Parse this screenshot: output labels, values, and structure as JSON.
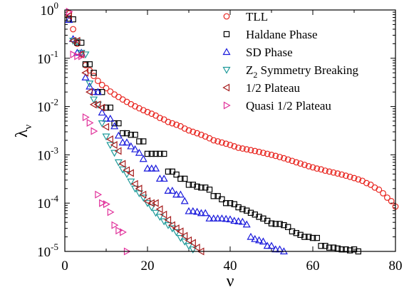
{
  "chart_data": {
    "type": "scatter",
    "xlabel": "ν",
    "ylabel": "λ",
    "ylabel_sub": "ν",
    "xlim": [
      0,
      80
    ],
    "ylim": [
      1e-05,
      1
    ],
    "yscale": "log",
    "x_ticks": [
      0,
      20,
      40,
      60,
      80
    ],
    "x_tick_labels": [
      "0",
      "20",
      "40",
      "60",
      "80"
    ],
    "y_ticks": [
      1,
      0.1,
      0.01,
      0.001,
      0.0001,
      1e-05
    ],
    "y_tick_labels": [
      {
        "base": "10",
        "exp": "0"
      },
      {
        "base": "10",
        "exp": "-1"
      },
      {
        "base": "10",
        "exp": "-2"
      },
      {
        "base": "10",
        "exp": "-3"
      },
      {
        "base": "10",
        "exp": "-4"
      },
      {
        "base": "10",
        "exp": "-5"
      }
    ],
    "legend_position": "top-right",
    "grid": false,
    "series": [
      {
        "name": "TLL",
        "marker": "circle",
        "color": "#e8251f",
        "x": [
          1,
          2,
          3,
          4,
          5,
          6,
          7,
          8,
          9,
          10,
          11,
          12,
          13,
          14,
          15,
          16,
          17,
          18,
          19,
          20,
          21,
          22,
          23,
          24,
          25,
          26,
          27,
          28,
          29,
          30,
          31,
          32,
          33,
          34,
          35,
          36,
          37,
          38,
          39,
          40,
          41,
          42,
          43,
          44,
          45,
          46,
          47,
          48,
          49,
          50,
          51,
          52,
          53,
          54,
          55,
          56,
          57,
          58,
          59,
          60,
          61,
          62,
          63,
          64,
          65,
          66,
          67,
          68,
          69,
          70,
          71,
          72,
          73,
          74,
          75,
          76,
          77,
          78,
          79,
          80
        ],
        "y": [
          0.85,
          0.4,
          0.2,
          0.12,
          0.072,
          0.056,
          0.043,
          0.034,
          0.028,
          0.024,
          0.0205,
          0.0178,
          0.0158,
          0.014,
          0.0125,
          0.0112,
          0.0101,
          0.0092,
          0.0084,
          0.0077,
          0.0071,
          0.0065,
          0.0058,
          0.0054,
          0.0048,
          0.0045,
          0.0042,
          0.0039,
          0.0035,
          0.0032,
          0.003,
          0.0028,
          0.0026,
          0.0024,
          0.0022,
          0.002,
          0.0019,
          0.0018,
          0.0017,
          0.0016,
          0.0015,
          0.0014,
          0.00135,
          0.0013,
          0.00125,
          0.0012,
          0.00115,
          0.0011,
          0.00105,
          0.001,
          0.00095,
          0.0009,
          0.00085,
          0.0008,
          0.00075,
          0.0007,
          0.00066,
          0.00062,
          0.00058,
          0.00055,
          0.00052,
          0.0005,
          0.00047,
          0.00045,
          0.00043,
          0.00041,
          0.00039,
          0.00037,
          0.00035,
          0.00033,
          0.00031,
          0.00029,
          0.00026,
          0.00024,
          0.00021,
          0.00019,
          0.00016,
          0.00013,
          0.00011,
          8.5e-05
        ]
      },
      {
        "name": "Haldane Phase",
        "marker": "square",
        "color": "#000000",
        "x": [
          1,
          2,
          3,
          4,
          5,
          6,
          7,
          8,
          9,
          10,
          11,
          12,
          13,
          14,
          15,
          16,
          17,
          18,
          19,
          20,
          21,
          22,
          23,
          24,
          25,
          26,
          27,
          28,
          29,
          30,
          31,
          32,
          33,
          34,
          35,
          36,
          37,
          38,
          39,
          40,
          41,
          42,
          43,
          44,
          45,
          46,
          47,
          48,
          49,
          50,
          51,
          52,
          53,
          54,
          55,
          56,
          57,
          58,
          59,
          60,
          61,
          62,
          63,
          64,
          65,
          66,
          67,
          68,
          69,
          70,
          71
        ],
        "y": [
          0.66,
          0.64,
          0.21,
          0.21,
          0.075,
          0.075,
          0.05,
          0.02,
          0.02,
          0.0095,
          0.0095,
          0.0045,
          0.0045,
          0.0028,
          0.0028,
          0.0026,
          0.0026,
          0.0019,
          0.0019,
          0.00105,
          0.00105,
          0.00105,
          0.00105,
          0.00105,
          0.00045,
          0.00045,
          0.00039,
          0.00032,
          0.00032,
          0.00024,
          0.00024,
          0.00022,
          0.00021,
          0.00021,
          0.00019,
          0.00014,
          0.00014,
          0.00012,
          0.0001,
          0.0001,
          9.5e-05,
          8.2e-05,
          7.5e-05,
          7e-05,
          6.3e-05,
          5.8e-05,
          5.2e-05,
          4.8e-05,
          4.3e-05,
          3.8e-05,
          3.7e-05,
          3.7e-05,
          3.5e-05,
          3.2e-05,
          2.6e-05,
          2.4e-05,
          2.2e-05,
          2e-05,
          2e-05,
          1.9e-05,
          1.9e-05,
          1.3e-05,
          1.3e-05,
          1.2e-05,
          1.2e-05,
          1.15e-05,
          1.1e-05,
          1.1e-05,
          1.05e-05,
          1.1e-05,
          1e-05
        ]
      },
      {
        "name": "SD Phase",
        "marker": "triangle-up",
        "color": "#1a1adc",
        "x": [
          1,
          2,
          3,
          4,
          5,
          6,
          7,
          8,
          9,
          10,
          11,
          12,
          13,
          14,
          15,
          16,
          17,
          18,
          19,
          20,
          21,
          22,
          23,
          24,
          25,
          26,
          27,
          28,
          29,
          30,
          31,
          32,
          33,
          34,
          35,
          36,
          37,
          38,
          39,
          40,
          41,
          42,
          43,
          44,
          45,
          46,
          47,
          48,
          49,
          50,
          51,
          52,
          53
        ],
        "y": [
          0.62,
          0.25,
          0.13,
          0.13,
          0.04,
          0.026,
          0.02,
          0.02,
          0.0075,
          0.0056,
          0.0056,
          0.0039,
          0.0025,
          0.0018,
          0.0018,
          0.0015,
          0.0013,
          0.0011,
          0.00082,
          0.00052,
          0.00052,
          0.00052,
          0.00032,
          0.00032,
          0.00018,
          0.00018,
          0.00015,
          0.00015,
          0.00011,
          6.8e-05,
          6.8e-05,
          6.6e-05,
          6.2e-05,
          6.2e-05,
          4.8e-05,
          4.8e-05,
          4.8e-05,
          4.8e-05,
          4.7e-05,
          4.6e-05,
          4.3e-05,
          4.2e-05,
          4.1e-05,
          3.6e-05,
          2e-05,
          1.8e-05,
          1.7e-05,
          1.6e-05,
          1.3e-05,
          1.3e-05,
          1.1e-05,
          1.1e-05,
          1e-05
        ]
      },
      {
        "name": "Z_2 Symmetry Breaking",
        "marker": "triangle-down",
        "color": "#1e9a9a",
        "x": [
          2,
          3,
          4,
          5,
          6,
          7,
          8,
          9,
          10,
          11,
          12,
          13,
          14,
          15,
          16,
          17,
          18,
          19,
          20,
          21,
          22,
          23,
          24,
          25,
          26,
          27,
          28,
          29,
          30,
          31
        ],
        "y": [
          0.23,
          0.22,
          0.13,
          0.12,
          0.03,
          0.014,
          0.011,
          0.0045,
          0.0024,
          0.0016,
          0.0011,
          0.0007,
          0.0005,
          0.0004,
          0.00028,
          0.0002,
          0.00016,
          0.00013,
          0.0001,
          8.2e-05,
          6.3e-05,
          5.2e-05,
          4.2e-05,
          3.5e-05,
          3e-05,
          2.5e-05,
          1.9e-05,
          1.6e-05,
          1.3e-05,
          1.1e-05
        ]
      },
      {
        "name": "1/2 Plateau",
        "marker": "triangle-left",
        "color": "#a51c1c",
        "x": [
          1,
          2,
          3,
          4,
          5,
          6,
          7,
          8,
          9,
          10,
          11,
          12,
          13,
          14,
          15,
          16,
          17,
          18,
          19,
          20,
          21,
          22,
          23,
          24,
          25,
          26,
          27,
          28,
          29,
          30,
          31,
          32,
          33
        ],
        "y": [
          0.75,
          0.23,
          0.23,
          0.12,
          0.05,
          0.02,
          0.011,
          0.011,
          0.0095,
          0.0038,
          0.0021,
          0.0016,
          0.0012,
          0.00065,
          0.00048,
          0.00042,
          0.00025,
          0.0002,
          0.00015,
          0.00011,
          0.0001,
          0.0001,
          7.5e-05,
          5.8e-05,
          4.5e-05,
          3.5e-05,
          3e-05,
          2.6e-05,
          2.1e-05,
          1.7e-05,
          1.5e-05,
          1.2e-05,
          1e-05
        ]
      },
      {
        "name": "Quasi 1/2 Plateau",
        "marker": "triangle-right",
        "color": "#e0309a",
        "x": [
          1,
          2,
          3,
          4,
          5,
          6,
          7,
          8,
          9,
          10,
          11,
          12,
          13,
          14,
          15
        ],
        "y": [
          0.92,
          0.12,
          0.11,
          0.11,
          0.006,
          0.0046,
          0.0031,
          0.00015,
          0.0001,
          9.5e-05,
          6.5e-05,
          3.5e-05,
          2.7e-05,
          2.5e-05,
          1e-05
        ]
      }
    ]
  }
}
